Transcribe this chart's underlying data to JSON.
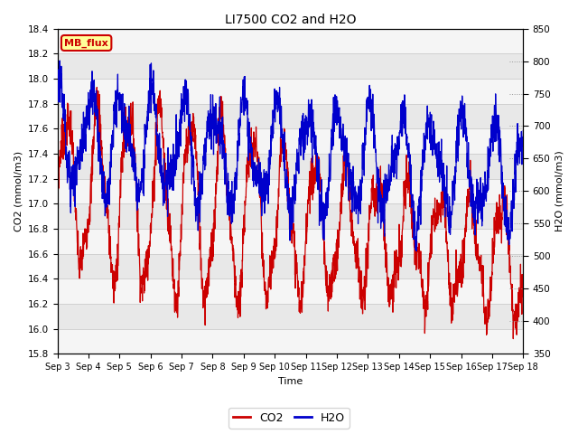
{
  "title": "LI7500 CO2 and H2O",
  "xlabel": "Time",
  "ylabel_left": "CO2 (mmol/m3)",
  "ylabel_right": "H2O (mmol/m3)",
  "ylim_left": [
    15.8,
    18.4
  ],
  "ylim_right": [
    350,
    850
  ],
  "yticks_left": [
    15.8,
    16.0,
    16.2,
    16.4,
    16.6,
    16.8,
    17.0,
    17.2,
    17.4,
    17.6,
    17.8,
    18.0,
    18.2,
    18.4
  ],
  "yticks_right": [
    350,
    400,
    450,
    500,
    550,
    600,
    650,
    700,
    750,
    800,
    850
  ],
  "xtick_labels": [
    "Sep 3",
    "Sep 4",
    "Sep 5",
    "Sep 6",
    "Sep 7",
    "Sep 8",
    "Sep 9",
    "Sep 10",
    "Sep 11",
    "Sep 12",
    "Sep 13",
    "Sep 14",
    "Sep 15",
    "Sep 16",
    "Sep 17",
    "Sep 18"
  ],
  "co2_color": "#cc0000",
  "h2o_color": "#0000cc",
  "legend_label_co2": "CO2",
  "legend_label_h2o": "H2O",
  "annotation_text": "MB_flux",
  "annotation_bg": "#ffff99",
  "annotation_border": "#cc0000",
  "background_color": "#ffffff",
  "plot_bg": "#e8e8e8",
  "band_color": "#f5f5f5"
}
